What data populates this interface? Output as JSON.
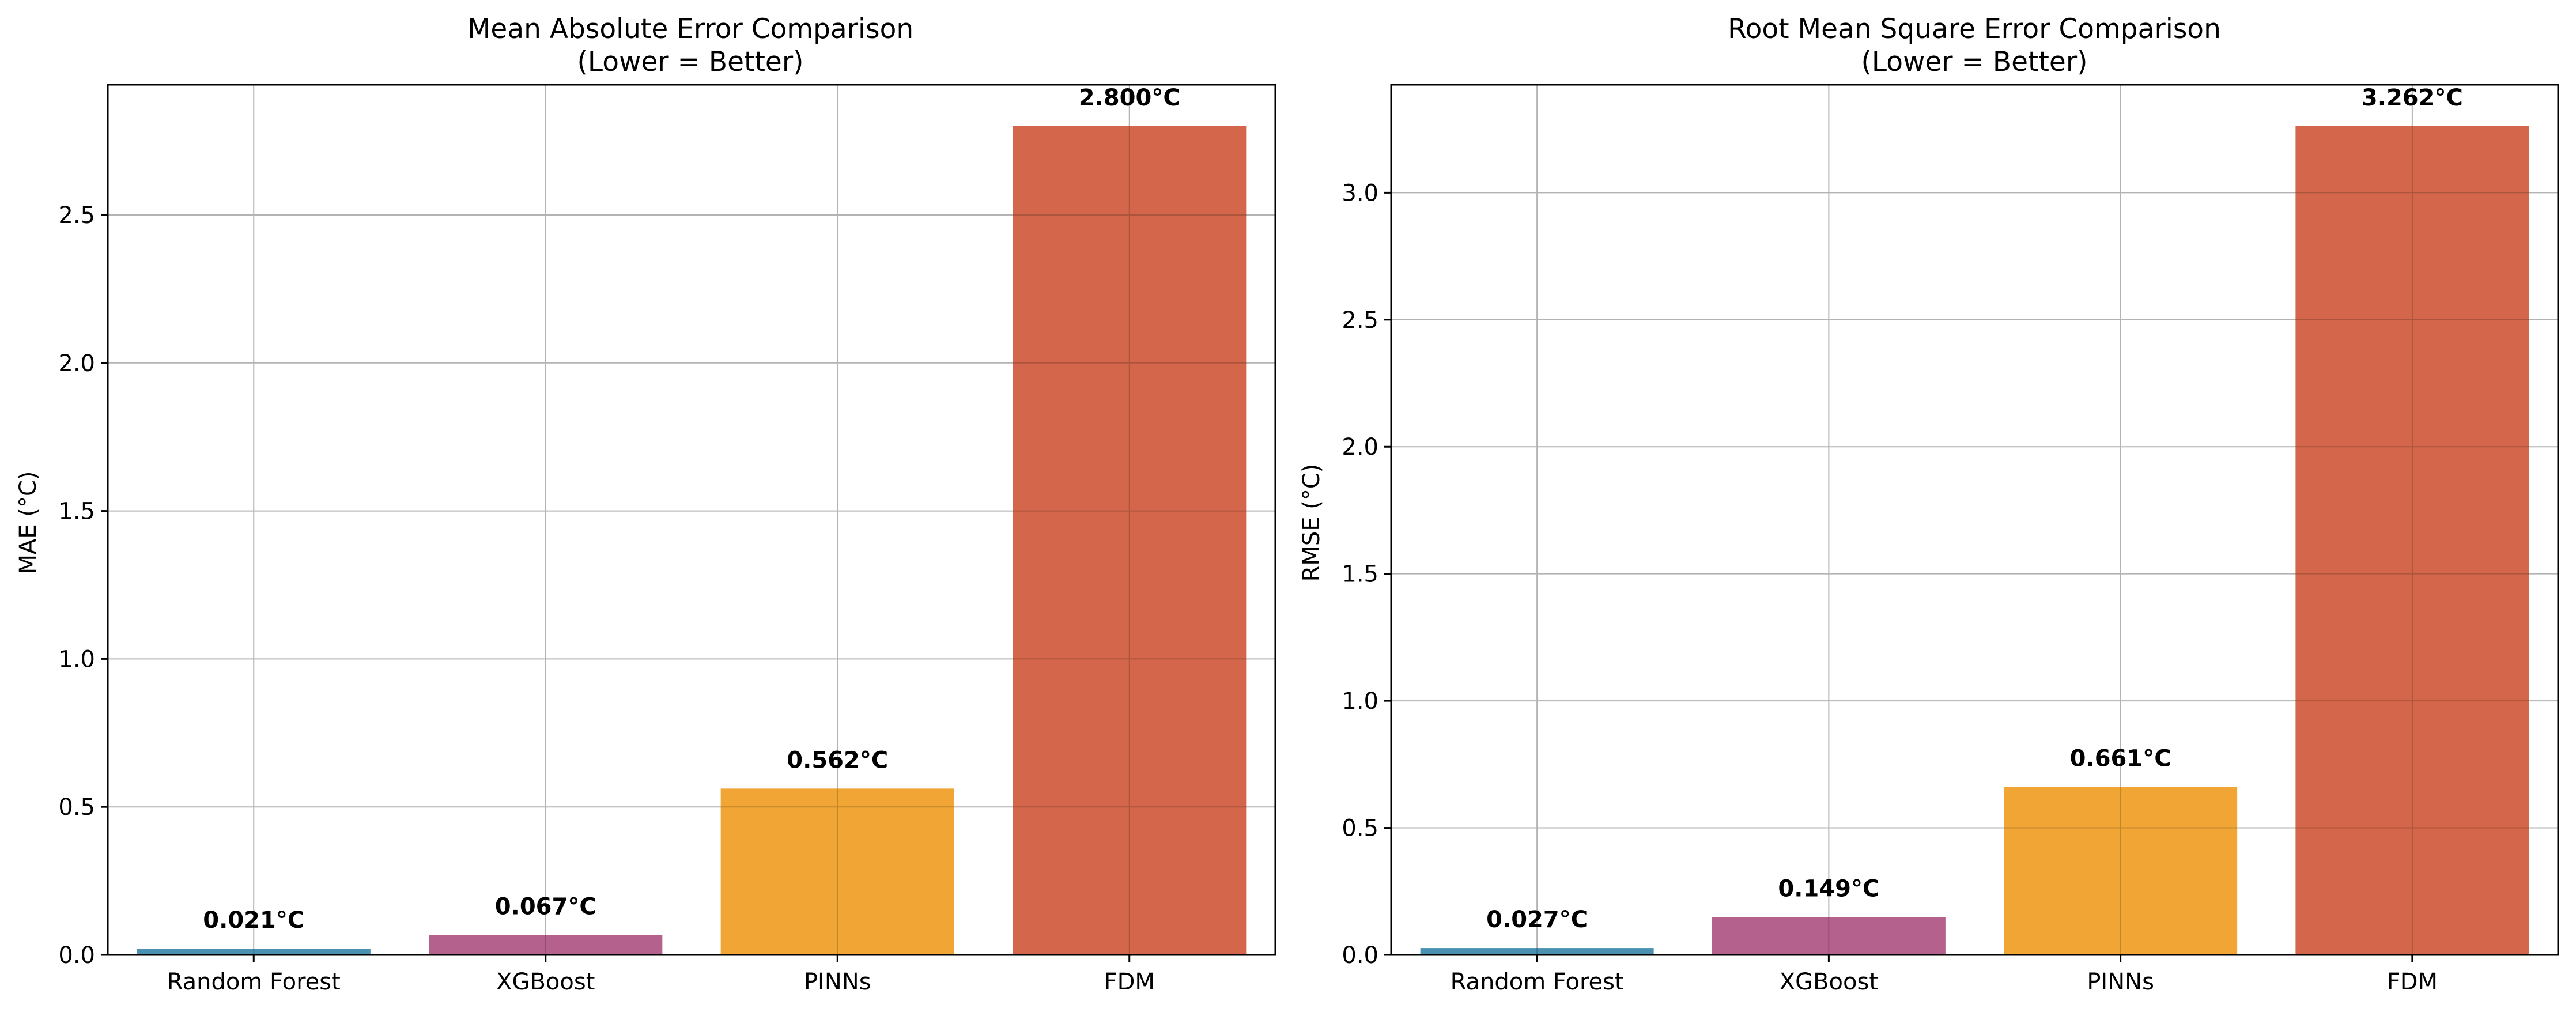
{
  "chart_data": [
    {
      "type": "bar",
      "title": "Mean Absolute Error Comparison",
      "subtitle": "(Lower = Better)",
      "xlabel": "",
      "ylabel": "MAE (°C)",
      "categories": [
        "Random Forest",
        "XGBoost",
        "PINNs",
        "FDM"
      ],
      "values": [
        0.021,
        0.067,
        0.562,
        2.8
      ],
      "value_labels": [
        "0.021°C",
        "0.067°C",
        "0.562°C",
        "2.800°C"
      ],
      "colors": [
        "#4a90b0",
        "#b5618d",
        "#f0a535",
        "#d4674b"
      ],
      "ylim": [
        0,
        2.94
      ],
      "yticks": [
        0.0,
        0.5,
        1.0,
        1.5,
        2.0,
        2.5
      ],
      "ytick_labels": [
        "0.0",
        "0.5",
        "1.0",
        "1.5",
        "2.0",
        "2.5"
      ],
      "grid": true,
      "legend": "none"
    },
    {
      "type": "bar",
      "title": "Root Mean Square Error Comparison",
      "subtitle": "(Lower = Better)",
      "xlabel": "",
      "ylabel": "RMSE (°C)",
      "categories": [
        "Random Forest",
        "XGBoost",
        "PINNs",
        "FDM"
      ],
      "values": [
        0.027,
        0.149,
        0.661,
        3.262
      ],
      "value_labels": [
        "0.027°C",
        "0.149°C",
        "0.661°C",
        "3.262°C"
      ],
      "colors": [
        "#4a90b0",
        "#b5618d",
        "#f0a535",
        "#d4674b"
      ],
      "ylim": [
        0,
        3.425
      ],
      "yticks": [
        0.0,
        0.5,
        1.0,
        1.5,
        2.0,
        2.5,
        3.0
      ],
      "ytick_labels": [
        "0.0",
        "0.5",
        "1.0",
        "1.5",
        "2.0",
        "2.5",
        "3.0"
      ],
      "grid": true,
      "legend": "none"
    }
  ]
}
